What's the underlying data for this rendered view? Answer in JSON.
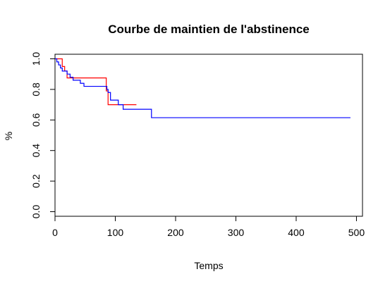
{
  "chart_data": {
    "type": "line",
    "title": "Courbe de maintien de l'abstinence",
    "xlabel": "Temps",
    "ylabel": "%",
    "xlim": [
      0,
      510
    ],
    "ylim": [
      -0.03,
      1.03
    ],
    "x_ticks": [
      0,
      100,
      200,
      300,
      400,
      500
    ],
    "y_ticks": [
      0.0,
      0.2,
      0.4,
      0.6,
      0.8,
      1.0
    ],
    "x_tick_labels": [
      "0",
      "100",
      "200",
      "300",
      "400",
      "500"
    ],
    "y_tick_labels": [
      "0.0",
      "0.2",
      "0.4",
      "0.6",
      "0.8",
      "1.0"
    ],
    "grid": false,
    "step": true,
    "series": [
      {
        "color": "#ff0000",
        "x": [
          0,
          12,
          16,
          20,
          85,
          88,
          96,
          135
        ],
        "y": [
          1.0,
          0.95,
          0.92,
          0.875,
          0.79,
          0.7,
          0.7,
          0.7
        ]
      },
      {
        "color": "#0000ff",
        "x": [
          0,
          3,
          6,
          9,
          12,
          15,
          20,
          25,
          30,
          35,
          42,
          48,
          55,
          86,
          88,
          92,
          96,
          105,
          113,
          160,
          490
        ],
        "y": [
          1.0,
          0.98,
          0.96,
          0.94,
          0.92,
          0.92,
          0.9,
          0.88,
          0.86,
          0.86,
          0.84,
          0.82,
          0.82,
          0.8,
          0.78,
          0.73,
          0.73,
          0.7,
          0.67,
          0.615,
          0.615
        ]
      }
    ]
  }
}
